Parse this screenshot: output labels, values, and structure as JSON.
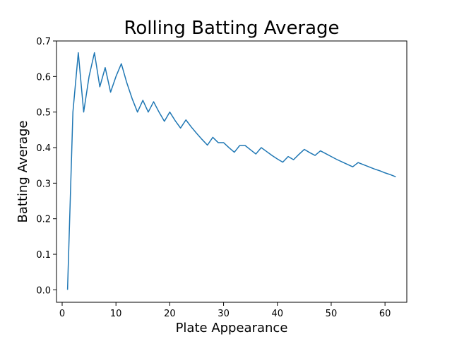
{
  "chart_data": {
    "type": "line",
    "title": "Rolling Batting Average",
    "xlabel": "Plate Appearance",
    "ylabel": "Batting Average",
    "xlim": [
      -1.05,
      64.05
    ],
    "ylim": [
      -0.035,
      0.7
    ],
    "x_ticks": [
      0,
      10,
      20,
      30,
      40,
      50,
      60
    ],
    "y_ticks": [
      0.0,
      0.1,
      0.2,
      0.3,
      0.4,
      0.5,
      0.6,
      0.7
    ],
    "x_tick_labels": [
      "0",
      "10",
      "20",
      "30",
      "40",
      "50",
      "60"
    ],
    "y_tick_labels": [
      "0.0",
      "0.1",
      "0.2",
      "0.3",
      "0.4",
      "0.5",
      "0.6",
      "0.7"
    ],
    "grid": false,
    "line_color": "#1f77b4",
    "series": [
      {
        "x": [
          1,
          2,
          3,
          4,
          5,
          6,
          7,
          8,
          9,
          10,
          11,
          12,
          13,
          14,
          15,
          16,
          17,
          18,
          19,
          20,
          21,
          22,
          23,
          24,
          25,
          26,
          27,
          28,
          29,
          30,
          31,
          32,
          33,
          34,
          35,
          36,
          37,
          38,
          39,
          40,
          41,
          42,
          43,
          44,
          45,
          46,
          47,
          48,
          49,
          50,
          51,
          52,
          53,
          54,
          55,
          56,
          57,
          58,
          59,
          60,
          61,
          62
        ],
        "y": [
          0.0,
          0.5,
          0.667,
          0.5,
          0.6,
          0.667,
          0.571,
          0.625,
          0.556,
          0.6,
          0.636,
          0.583,
          0.538,
          0.5,
          0.533,
          0.5,
          0.529,
          0.5,
          0.474,
          0.5,
          0.476,
          0.455,
          0.478,
          0.458,
          0.44,
          0.423,
          0.407,
          0.429,
          0.414,
          0.414,
          0.4,
          0.387,
          0.406,
          0.406,
          0.394,
          0.382,
          0.4,
          0.389,
          0.378,
          0.368,
          0.359,
          0.375,
          0.366,
          0.381,
          0.395,
          0.386,
          0.378,
          0.391,
          0.383,
          0.375,
          0.367,
          0.36,
          0.353,
          0.346,
          0.358,
          0.352,
          0.346,
          0.34,
          0.335,
          0.329,
          0.324,
          0.318
        ]
      }
    ]
  }
}
